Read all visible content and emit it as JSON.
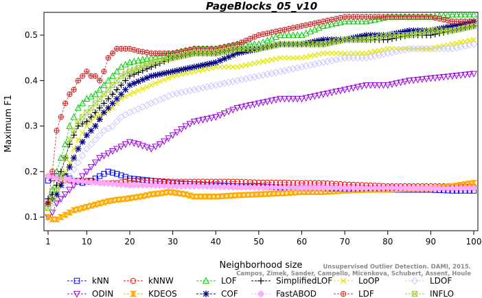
{
  "chart_data": {
    "type": "line",
    "title": "PageBlocks_05_v10",
    "xlabel": "Neighborhood size",
    "ylabel": "Maximum F1",
    "xlim": [
      1,
      100
    ],
    "ylim": [
      0.07,
      0.55
    ],
    "xticks": [
      1,
      10,
      20,
      30,
      40,
      50,
      60,
      70,
      80,
      90,
      100
    ],
    "yticks": [
      0.1,
      0.2,
      0.3,
      0.4,
      0.5
    ],
    "legend_position": "bottom",
    "series": [
      {
        "name": "kNN",
        "color": "#0000ff",
        "marker": "square",
        "x": [
          1,
          2,
          3,
          5,
          7,
          9,
          11,
          13,
          15,
          17,
          20,
          25,
          30,
          35,
          40,
          45,
          50,
          55,
          60,
          65,
          70,
          75,
          80,
          85,
          90,
          95,
          100
        ],
        "y": [
          0.18,
          0.185,
          0.19,
          0.19,
          0.18,
          0.175,
          0.18,
          0.19,
          0.2,
          0.195,
          0.185,
          0.18,
          0.175,
          0.172,
          0.17,
          0.168,
          0.168,
          0.165,
          0.163,
          0.163,
          0.162,
          0.162,
          0.16,
          0.16,
          0.16,
          0.158,
          0.158
        ]
      },
      {
        "name": "kNNW",
        "color": "#ff0000",
        "marker": "circle",
        "x": [
          1,
          2,
          3,
          5,
          7,
          9,
          11,
          13,
          15,
          17,
          20,
          25,
          30,
          35,
          40,
          45,
          50,
          55,
          60,
          65,
          70,
          75,
          80,
          85,
          90,
          95,
          100
        ],
        "y": [
          0.19,
          0.19,
          0.185,
          0.18,
          0.18,
          0.18,
          0.18,
          0.175,
          0.175,
          0.175,
          0.18,
          0.18,
          0.178,
          0.178,
          0.178,
          0.178,
          0.176,
          0.176,
          0.175,
          0.175,
          0.172,
          0.17,
          0.168,
          0.168,
          0.168,
          0.168,
          0.168
        ]
      },
      {
        "name": "LOF",
        "color": "#00cc00",
        "marker": "triangle-up",
        "x": [
          1,
          2,
          3,
          4,
          5,
          6,
          7,
          8,
          10,
          12,
          14,
          16,
          18,
          20,
          25,
          30,
          35,
          40,
          45,
          50,
          55,
          60,
          65,
          70,
          75,
          80,
          85,
          90,
          95,
          100
        ],
        "y": [
          0.13,
          0.16,
          0.2,
          0.23,
          0.26,
          0.3,
          0.32,
          0.34,
          0.36,
          0.37,
          0.39,
          0.41,
          0.43,
          0.44,
          0.45,
          0.46,
          0.47,
          0.47,
          0.48,
          0.48,
          0.5,
          0.5,
          0.52,
          0.53,
          0.53,
          0.54,
          0.54,
          0.54,
          0.545,
          0.545
        ]
      },
      {
        "name": "SimplifiedLOF",
        "color": "#000000",
        "marker": "plus",
        "x": [
          1,
          2,
          3,
          4,
          5,
          6,
          7,
          8,
          10,
          12,
          14,
          16,
          18,
          20,
          25,
          30,
          35,
          40,
          45,
          50,
          55,
          60,
          65,
          70,
          75,
          80,
          85,
          90,
          95,
          100
        ],
        "y": [
          0.14,
          0.15,
          0.17,
          0.2,
          0.23,
          0.26,
          0.28,
          0.3,
          0.31,
          0.33,
          0.35,
          0.37,
          0.39,
          0.41,
          0.43,
          0.45,
          0.46,
          0.46,
          0.47,
          0.47,
          0.48,
          0.48,
          0.48,
          0.49,
          0.49,
          0.49,
          0.5,
          0.5,
          0.51,
          0.52
        ]
      },
      {
        "name": "LoOP",
        "color": "#e6e600",
        "marker": "x",
        "x": [
          1,
          2,
          3,
          4,
          5,
          6,
          7,
          8,
          10,
          12,
          14,
          16,
          18,
          20,
          25,
          30,
          35,
          40,
          45,
          50,
          55,
          60,
          65,
          70,
          75,
          80,
          85,
          90,
          95,
          100
        ],
        "y": [
          0.12,
          0.13,
          0.14,
          0.17,
          0.2,
          0.22,
          0.25,
          0.27,
          0.3,
          0.32,
          0.33,
          0.34,
          0.36,
          0.37,
          0.39,
          0.41,
          0.42,
          0.43,
          0.43,
          0.44,
          0.45,
          0.45,
          0.46,
          0.46,
          0.46,
          0.47,
          0.47,
          0.47,
          0.48,
          0.49
        ]
      },
      {
        "name": "LDOF",
        "color": "#c8c8ff",
        "marker": "diamond",
        "x": [
          1,
          2,
          3,
          4,
          5,
          6,
          8,
          10,
          12,
          14,
          16,
          18,
          20,
          25,
          30,
          35,
          40,
          45,
          50,
          55,
          60,
          65,
          70,
          75,
          80,
          85,
          90,
          95,
          100
        ],
        "y": [
          0.12,
          0.13,
          0.14,
          0.15,
          0.17,
          0.19,
          0.22,
          0.25,
          0.27,
          0.29,
          0.3,
          0.32,
          0.33,
          0.35,
          0.37,
          0.38,
          0.39,
          0.4,
          0.41,
          0.42,
          0.43,
          0.44,
          0.45,
          0.45,
          0.46,
          0.47,
          0.47,
          0.47,
          0.48
        ]
      },
      {
        "name": "ODIN",
        "color": "#9900dd",
        "marker": "triangle-down",
        "x": [
          1,
          2,
          3,
          5,
          7,
          9,
          11,
          13,
          15,
          17,
          19,
          20,
          22,
          25,
          27,
          30,
          33,
          35,
          40,
          45,
          50,
          55,
          60,
          65,
          70,
          75,
          80,
          85,
          90,
          95,
          100
        ],
        "y": [
          0.1,
          0.11,
          0.13,
          0.15,
          0.17,
          0.19,
          0.21,
          0.23,
          0.24,
          0.25,
          0.26,
          0.265,
          0.26,
          0.25,
          0.26,
          0.28,
          0.3,
          0.31,
          0.32,
          0.34,
          0.35,
          0.36,
          0.36,
          0.37,
          0.38,
          0.39,
          0.39,
          0.4,
          0.405,
          0.41,
          0.415
        ]
      },
      {
        "name": "KDEOS",
        "color": "#ffaa00",
        "marker": "hourglass",
        "x": [
          1,
          2,
          3,
          5,
          7,
          9,
          11,
          13,
          15,
          17,
          19,
          21,
          23,
          25,
          27,
          29,
          31,
          33,
          35,
          40,
          45,
          50,
          55,
          60,
          65,
          70,
          75,
          80,
          85,
          90,
          95,
          100
        ],
        "y": [
          0.1,
          0.095,
          0.095,
          0.105,
          0.115,
          0.12,
          0.125,
          0.13,
          0.135,
          0.138,
          0.14,
          0.143,
          0.146,
          0.15,
          0.152,
          0.155,
          0.153,
          0.15,
          0.145,
          0.145,
          0.148,
          0.15,
          0.152,
          0.155,
          0.155,
          0.158,
          0.16,
          0.16,
          0.162,
          0.163,
          0.168,
          0.175
        ]
      },
      {
        "name": "COF",
        "color": "#000080",
        "marker": "star",
        "x": [
          1,
          2,
          3,
          4,
          5,
          6,
          7,
          8,
          10,
          12,
          14,
          16,
          18,
          20,
          25,
          30,
          35,
          40,
          45,
          50,
          55,
          60,
          65,
          70,
          75,
          80,
          85,
          90,
          95,
          100
        ],
        "y": [
          0.13,
          0.14,
          0.15,
          0.17,
          0.19,
          0.21,
          0.23,
          0.25,
          0.28,
          0.3,
          0.33,
          0.35,
          0.37,
          0.39,
          0.41,
          0.42,
          0.43,
          0.44,
          0.46,
          0.47,
          0.48,
          0.48,
          0.49,
          0.49,
          0.5,
          0.5,
          0.51,
          0.51,
          0.52,
          0.53
        ]
      },
      {
        "name": "FastABOD",
        "color": "#ffaaff",
        "marker": "diamond-filled",
        "x": [
          1,
          3,
          5,
          7,
          9,
          11,
          13,
          15,
          17,
          20,
          25,
          30,
          35,
          40,
          45,
          50,
          55,
          60,
          65,
          70,
          75,
          80,
          85,
          90,
          95,
          100
        ],
        "y": [
          0.19,
          0.185,
          0.185,
          0.18,
          0.178,
          0.176,
          0.175,
          0.174,
          0.172,
          0.17,
          0.17,
          0.168,
          0.168,
          0.167,
          0.166,
          0.165,
          0.165,
          0.165,
          0.165,
          0.164,
          0.164,
          0.164,
          0.163,
          0.163,
          0.163,
          0.163
        ]
      },
      {
        "name": "LDF",
        "color": "#cc2222",
        "marker": "circle-plus",
        "x": [
          1,
          2,
          3,
          4,
          5,
          6,
          7,
          8,
          9,
          10,
          11,
          12,
          13,
          14,
          15,
          16,
          17,
          18,
          20,
          22,
          25,
          30,
          35,
          40,
          45,
          50,
          55,
          60,
          65,
          70,
          75,
          80,
          85,
          90,
          95,
          100
        ],
        "y": [
          0.13,
          0.2,
          0.29,
          0.32,
          0.35,
          0.37,
          0.38,
          0.4,
          0.41,
          0.42,
          0.41,
          0.41,
          0.4,
          0.42,
          0.45,
          0.46,
          0.47,
          0.47,
          0.47,
          0.465,
          0.46,
          0.46,
          0.47,
          0.47,
          0.48,
          0.5,
          0.51,
          0.52,
          0.53,
          0.54,
          0.54,
          0.54,
          0.54,
          0.54,
          0.53,
          0.53
        ]
      },
      {
        "name": "INFLO",
        "color": "#99cc33",
        "marker": "square-x",
        "x": [
          1,
          2,
          3,
          4,
          5,
          6,
          7,
          8,
          10,
          12,
          14,
          16,
          18,
          20,
          25,
          30,
          35,
          40,
          45,
          50,
          55,
          60,
          65,
          70,
          75,
          80,
          85,
          90,
          95,
          100
        ],
        "y": [
          0.12,
          0.14,
          0.16,
          0.19,
          0.23,
          0.27,
          0.29,
          0.31,
          0.33,
          0.35,
          0.37,
          0.39,
          0.41,
          0.42,
          0.44,
          0.45,
          0.46,
          0.46,
          0.47,
          0.47,
          0.48,
          0.48,
          0.48,
          0.49,
          0.49,
          0.5,
          0.5,
          0.51,
          0.51,
          0.52
        ]
      }
    ],
    "legend": [
      {
        "name": "kNN"
      },
      {
        "name": "kNNW"
      },
      {
        "name": "LOF"
      },
      {
        "name": "SimplifiedLOF"
      },
      {
        "name": "LoOP"
      },
      {
        "name": "LDOF"
      },
      {
        "name": "ODIN"
      },
      {
        "name": "KDEOS"
      },
      {
        "name": "COF"
      },
      {
        "name": "FastABOD"
      },
      {
        "name": "LDF"
      },
      {
        "name": "INFLO"
      }
    ],
    "watermark": [
      "Unsupervised Outlier Detection. DAMI, 2015.",
      "Campos, Zimek, Sander, Campello, Micenkova, Schubert, Assent, Houle"
    ]
  }
}
